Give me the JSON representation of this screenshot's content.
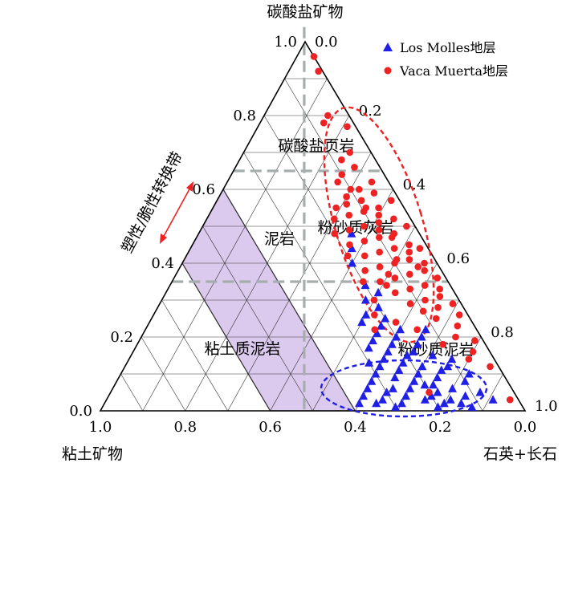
{
  "chart_data": {
    "type": "scatter",
    "subtype": "ternary",
    "axes": {
      "top": "碳酸盐矿物",
      "left": "粘土矿物",
      "right": "石英+长石"
    },
    "ticks": {
      "left_side": [
        "1.0",
        "0.8",
        "0.6",
        "0.4",
        "0.2",
        "0.0"
      ],
      "right_side": [
        "0.0",
        "0.2",
        "0.4",
        "0.6",
        "0.8",
        "1.0"
      ],
      "bottom": [
        "1.0",
        "0.8",
        "0.6",
        "0.4",
        "0.2",
        "0.0"
      ]
    },
    "regions": {
      "carbonate_shale": "碳酸盐页岩",
      "mudstone": "泥岩",
      "silty_limestone": "粉砂质灰岩",
      "clayey_mudstone": "粘土质泥岩",
      "silty_mudstone": "粉砂质泥岩"
    },
    "annotation": "塑性/脆性转换带",
    "boundaries": {
      "carbonate_levels": [
        0.35,
        0.65
      ],
      "clay_level": 0.52,
      "brittle_plastic_band_clay": [
        0.4,
        0.6
      ]
    },
    "grid": true,
    "legend_position": "top-right",
    "colors": {
      "los_molles": "#1f1fe6",
      "vaca_muerta": "#ee2222",
      "band": "#dcc9ee",
      "guide": "#a6adad"
    },
    "series": [
      {
        "name": "Los Molles地层",
        "marker": "triangle",
        "points": [
          [
            0.01,
            0.3,
            0.69
          ],
          [
            0.02,
            0.28,
            0.7
          ],
          [
            0.03,
            0.32,
            0.65
          ],
          [
            0.04,
            0.26,
            0.7
          ],
          [
            0.05,
            0.3,
            0.65
          ],
          [
            0.02,
            0.34,
            0.64
          ],
          [
            0.06,
            0.24,
            0.7
          ],
          [
            0.03,
            0.22,
            0.75
          ],
          [
            0.01,
            0.2,
            0.79
          ],
          [
            0.02,
            0.18,
            0.8
          ],
          [
            0.04,
            0.2,
            0.76
          ],
          [
            0.05,
            0.18,
            0.77
          ],
          [
            0.02,
            0.14,
            0.84
          ],
          [
            0.03,
            0.16,
            0.81
          ],
          [
            0.01,
            0.12,
            0.87
          ],
          [
            0.04,
            0.12,
            0.84
          ],
          [
            0.06,
            0.14,
            0.8
          ],
          [
            0.07,
            0.18,
            0.75
          ],
          [
            0.08,
            0.22,
            0.7
          ],
          [
            0.06,
            0.28,
            0.66
          ],
          [
            0.09,
            0.26,
            0.65
          ],
          [
            0.1,
            0.2,
            0.7
          ],
          [
            0.11,
            0.24,
            0.65
          ],
          [
            0.12,
            0.28,
            0.6
          ],
          [
            0.1,
            0.3,
            0.6
          ],
          [
            0.13,
            0.22,
            0.65
          ],
          [
            0.12,
            0.18,
            0.7
          ],
          [
            0.14,
            0.26,
            0.6
          ],
          [
            0.15,
            0.2,
            0.65
          ],
          [
            0.16,
            0.24,
            0.6
          ],
          [
            0.17,
            0.28,
            0.55
          ],
          [
            0.18,
            0.22,
            0.6
          ],
          [
            0.19,
            0.26,
            0.55
          ],
          [
            0.2,
            0.2,
            0.6
          ],
          [
            0.21,
            0.24,
            0.55
          ],
          [
            0.22,
            0.18,
            0.6
          ],
          [
            0.23,
            0.22,
            0.55
          ],
          [
            0.24,
            0.26,
            0.5
          ],
          [
            0.25,
            0.2,
            0.55
          ],
          [
            0.26,
            0.24,
            0.5
          ],
          [
            0.28,
            0.2,
            0.52
          ],
          [
            0.3,
            0.22,
            0.48
          ],
          [
            0.32,
            0.18,
            0.5
          ],
          [
            0.34,
            0.2,
            0.46
          ],
          [
            0.4,
            0.2,
            0.4
          ],
          [
            0.44,
            0.18,
            0.38
          ],
          [
            0.48,
            0.16,
            0.36
          ],
          [
            0.13,
            0.3,
            0.57
          ],
          [
            0.15,
            0.14,
            0.71
          ],
          [
            0.08,
            0.1,
            0.82
          ],
          [
            0.05,
            0.08,
            0.87
          ],
          [
            0.03,
            0.06,
            0.91
          ],
          [
            0.1,
            0.08,
            0.82
          ],
          [
            0.12,
            0.12,
            0.76
          ],
          [
            0.14,
            0.1,
            0.76
          ],
          [
            0.04,
            0.36,
            0.6
          ],
          [
            0.02,
            0.38,
            0.6
          ],
          [
            0.06,
            0.34,
            0.6
          ],
          [
            0.08,
            0.32,
            0.6
          ],
          [
            0.16,
            0.18,
            0.66
          ],
          [
            0.18,
            0.16,
            0.66
          ],
          [
            0.2,
            0.14,
            0.66
          ],
          [
            0.22,
            0.12,
            0.66
          ],
          [
            0.09,
            0.16,
            0.75
          ],
          [
            0.07,
            0.2,
            0.73
          ],
          [
            0.11,
            0.14,
            0.75
          ]
        ]
      },
      {
        "name": "Vaca Muerta地层",
        "marker": "circle",
        "points": [
          [
            0.96,
            0.0,
            0.04
          ],
          [
            0.92,
            0.01,
            0.07
          ],
          [
            0.8,
            0.05,
            0.15
          ],
          [
            0.78,
            0.07,
            0.15
          ],
          [
            0.77,
            0.02,
            0.21
          ],
          [
            0.7,
            0.05,
            0.25
          ],
          [
            0.68,
            0.08,
            0.24
          ],
          [
            0.66,
            0.06,
            0.28
          ],
          [
            0.64,
            0.1,
            0.26
          ],
          [
            0.62,
            0.04,
            0.34
          ],
          [
            0.6,
            0.08,
            0.32
          ],
          [
            0.58,
            0.12,
            0.3
          ],
          [
            0.59,
            0.05,
            0.36
          ],
          [
            0.57,
            0.09,
            0.34
          ],
          [
            0.56,
            0.13,
            0.31
          ],
          [
            0.55,
            0.06,
            0.39
          ],
          [
            0.54,
            0.1,
            0.36
          ],
          [
            0.53,
            0.14,
            0.33
          ],
          [
            0.52,
            0.04,
            0.44
          ],
          [
            0.51,
            0.08,
            0.41
          ],
          [
            0.5,
            0.12,
            0.38
          ],
          [
            0.49,
            0.16,
            0.35
          ],
          [
            0.48,
            0.06,
            0.46
          ],
          [
            0.47,
            0.1,
            0.43
          ],
          [
            0.46,
            0.14,
            0.4
          ],
          [
            0.45,
            0.04,
            0.51
          ],
          [
            0.44,
            0.08,
            0.48
          ],
          [
            0.43,
            0.12,
            0.45
          ],
          [
            0.42,
            0.16,
            0.42
          ],
          [
            0.41,
            0.06,
            0.53
          ],
          [
            0.4,
            0.1,
            0.5
          ],
          [
            0.39,
            0.14,
            0.47
          ],
          [
            0.38,
            0.04,
            0.58
          ],
          [
            0.37,
            0.08,
            0.55
          ],
          [
            0.36,
            0.12,
            0.52
          ],
          [
            0.35,
            0.16,
            0.49
          ],
          [
            0.34,
            0.06,
            0.6
          ],
          [
            0.33,
            0.1,
            0.57
          ],
          [
            0.32,
            0.14,
            0.54
          ],
          [
            0.31,
            0.04,
            0.65
          ],
          [
            0.3,
            0.08,
            0.62
          ],
          [
            0.29,
            0.12,
            0.59
          ],
          [
            0.28,
            0.06,
            0.66
          ],
          [
            0.27,
            0.1,
            0.63
          ],
          [
            0.26,
            0.02,
            0.72
          ],
          [
            0.25,
            0.08,
            0.67
          ],
          [
            0.23,
            0.04,
            0.73
          ],
          [
            0.22,
            0.14,
            0.64
          ],
          [
            0.2,
            0.06,
            0.74
          ],
          [
            0.18,
            0.1,
            0.72
          ],
          [
            0.24,
            0.18,
            0.58
          ],
          [
            0.3,
            0.2,
            0.5
          ],
          [
            0.26,
            0.22,
            0.52
          ],
          [
            0.22,
            0.24,
            0.54
          ],
          [
            0.19,
            0.02,
            0.79
          ],
          [
            0.16,
            0.04,
            0.8
          ],
          [
            0.12,
            0.02,
            0.86
          ],
          [
            0.14,
            0.06,
            0.8
          ],
          [
            0.03,
            0.02,
            0.95
          ],
          [
            0.05,
            0.2,
            0.75
          ],
          [
            0.55,
            0.16,
            0.29
          ],
          [
            0.52,
            0.18,
            0.3
          ],
          [
            0.48,
            0.2,
            0.32
          ],
          [
            0.45,
            0.18,
            0.37
          ],
          [
            0.42,
            0.2,
            0.38
          ],
          [
            0.38,
            0.18,
            0.44
          ],
          [
            0.35,
            0.2,
            0.45
          ],
          [
            0.62,
            0.12,
            0.26
          ],
          [
            0.57,
            0.02,
            0.41
          ],
          [
            0.5,
            0.02,
            0.48
          ],
          [
            0.44,
            0.02,
            0.54
          ],
          [
            0.4,
            0.03,
            0.57
          ],
          [
            0.36,
            0.02,
            0.62
          ],
          [
            0.33,
            0.03,
            0.64
          ],
          [
            0.29,
            0.02,
            0.69
          ],
          [
            0.6,
            0.1,
            0.3
          ],
          [
            0.53,
            0.07,
            0.4
          ],
          [
            0.47,
            0.07,
            0.46
          ],
          [
            0.41,
            0.09,
            0.5
          ],
          [
            0.37,
            0.13,
            0.5
          ],
          [
            0.34,
            0.15,
            0.51
          ],
          [
            0.39,
            0.05,
            0.56
          ],
          [
            0.43,
            0.05,
            0.52
          ],
          [
            0.49,
            0.09,
            0.42
          ],
          [
            0.55,
            0.09,
            0.36
          ]
        ]
      }
    ]
  }
}
